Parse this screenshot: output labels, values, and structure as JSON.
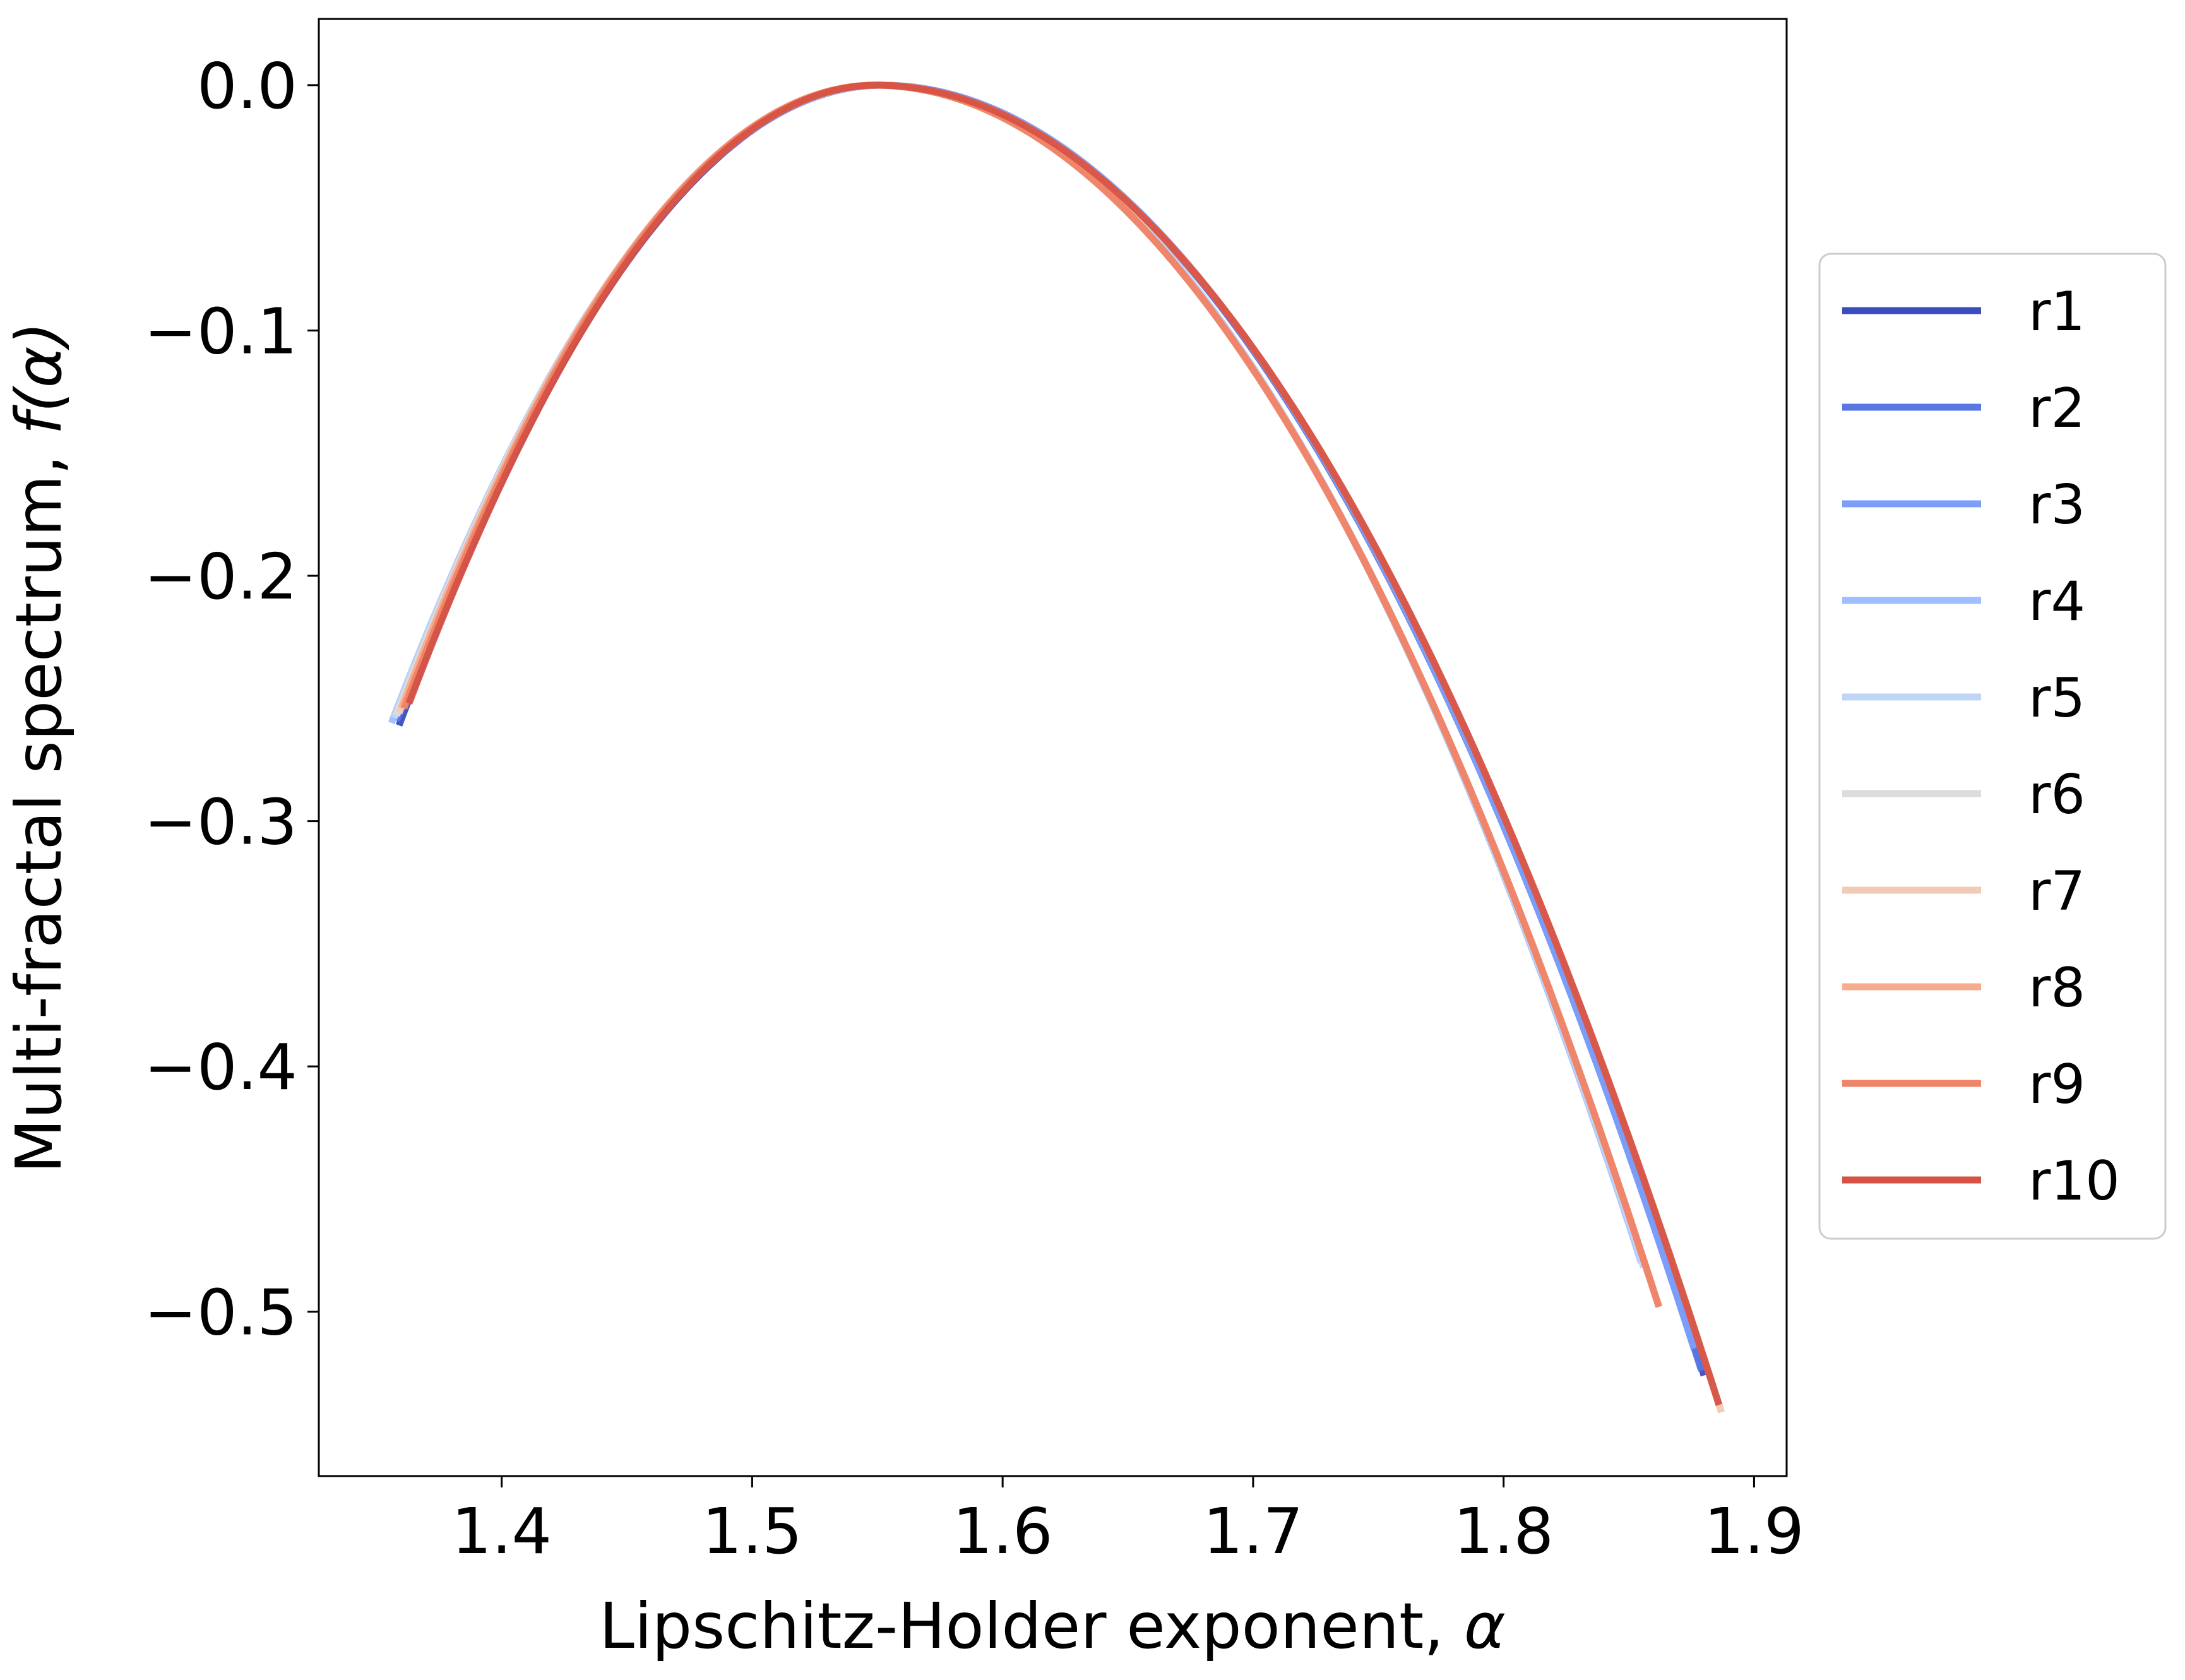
{
  "chart_data": {
    "type": "line",
    "title": "",
    "xlabel": "Lipschitz-Holder exponent, ",
    "xlabel_symbol": "α",
    "ylabel": "Multi-fractal spectrum, ",
    "ylabel_symbol": "f(α)",
    "xlim": [
      1.327,
      1.913
    ],
    "ylim": [
      -0.567,
      0.027
    ],
    "xticks": [
      1.4,
      1.5,
      1.6,
      1.7,
      1.8,
      1.9
    ],
    "xtick_labels": [
      "1.4",
      "1.5",
      "1.6",
      "1.7",
      "1.8",
      "1.9"
    ],
    "yticks": [
      0.0,
      -0.1,
      -0.2,
      -0.3,
      -0.4,
      -0.5
    ],
    "ytick_labels": [
      "0.0",
      "−0.1",
      "−0.2",
      "−0.3",
      "−0.4",
      "−0.5"
    ],
    "grid": false,
    "legend_position": "right-outside",
    "series": [
      {
        "name": "r1",
        "color": "#3b4cc0",
        "alpha_min": 1.359,
        "alpha_max": 1.88,
        "peak_alpha": 1.551,
        "f_min": -0.261,
        "f_max": -0.526
      },
      {
        "name": "r2",
        "color": "#5977e3",
        "alpha_min": 1.358,
        "alpha_max": 1.879,
        "peak_alpha": 1.551,
        "f_min": -0.259,
        "f_max": -0.524
      },
      {
        "name": "r3",
        "color": "#7b9ff9",
        "alpha_min": 1.357,
        "alpha_max": 1.876,
        "peak_alpha": 1.552,
        "f_min": -0.258,
        "f_max": -0.515
      },
      {
        "name": "r4",
        "color": "#9ebeff",
        "alpha_min": 1.356,
        "alpha_max": 1.855,
        "peak_alpha": 1.551,
        "f_min": -0.26,
        "f_max": -0.48
      },
      {
        "name": "r5",
        "color": "#c0d4f5",
        "alpha_min": 1.357,
        "alpha_max": 1.856,
        "peak_alpha": 1.551,
        "f_min": -0.258,
        "f_max": -0.482
      },
      {
        "name": "r6",
        "color": "#dddcdc",
        "alpha_min": 1.358,
        "alpha_max": 1.887,
        "peak_alpha": 1.55,
        "f_min": -0.257,
        "f_max": -0.541
      },
      {
        "name": "r7",
        "color": "#f2cbb7",
        "alpha_min": 1.359,
        "alpha_max": 1.887,
        "peak_alpha": 1.55,
        "f_min": -0.256,
        "f_max": -0.541
      },
      {
        "name": "r8",
        "color": "#f7ac8e",
        "alpha_min": 1.36,
        "alpha_max": 1.862,
        "peak_alpha": 1.549,
        "f_min": -0.254,
        "f_max": -0.498
      },
      {
        "name": "r9",
        "color": "#ee8468",
        "alpha_min": 1.361,
        "alpha_max": 1.862,
        "peak_alpha": 1.549,
        "f_min": -0.254,
        "f_max": -0.498
      },
      {
        "name": "r10",
        "color": "#d65244",
        "alpha_min": 1.363,
        "alpha_max": 1.886,
        "peak_alpha": 1.55,
        "f_min": -0.252,
        "f_max": -0.538
      }
    ]
  }
}
